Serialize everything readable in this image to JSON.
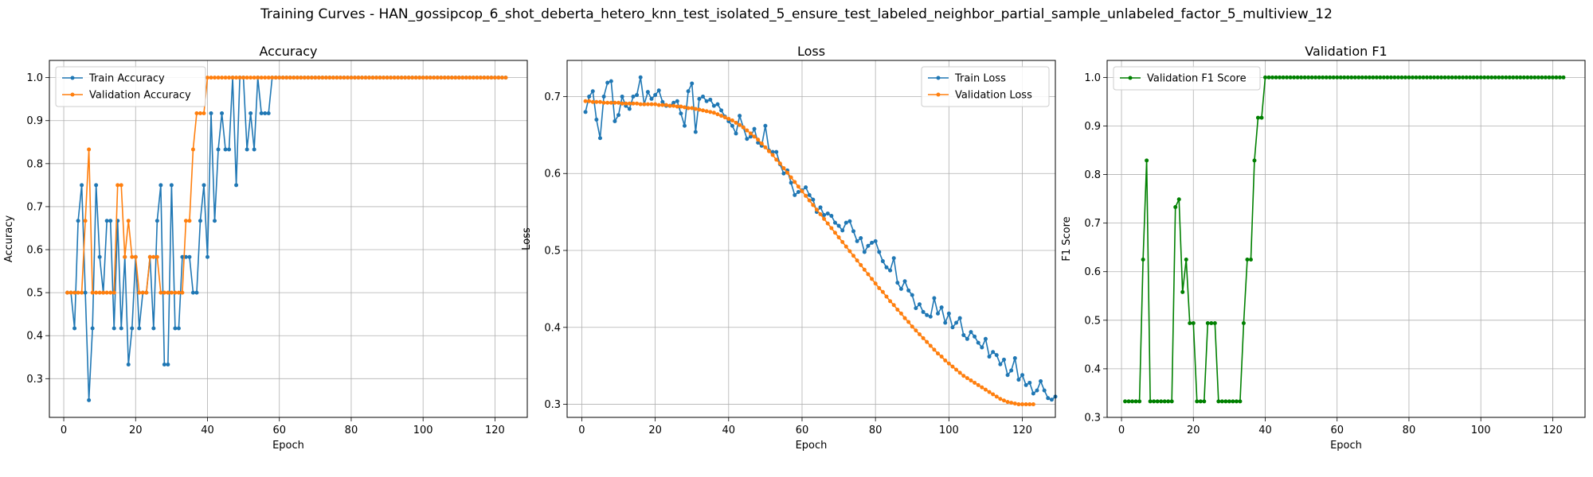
{
  "figure": {
    "title": "Training Curves - HAN_gossipcop_6_shot_deberta_hetero_knn_test_isolated_5_ensure_test_labeled_neighbor_partial_sample_unlabeled_factor_5_multiview_12"
  },
  "colors": {
    "blue": "#1f77b4",
    "orange": "#ff7f0e",
    "green": "#008000",
    "grid": "#b0b0b0"
  },
  "chart_data": [
    {
      "type": "line",
      "title": "Accuracy",
      "xlabel": "Epoch",
      "ylabel": "Accuracy",
      "xlim": [
        -4,
        129
      ],
      "ylim": [
        0.21,
        1.04
      ],
      "xticks": [
        0,
        20,
        40,
        60,
        80,
        100,
        120
      ],
      "yticks": [
        0.3,
        0.4,
        0.5,
        0.6,
        0.7,
        0.8,
        0.9,
        1.0
      ],
      "grid": true,
      "legend_position": "upper-left",
      "series": [
        {
          "name": "Train Accuracy",
          "color": "#1f77b4",
          "x_start": 1,
          "x_step": 1,
          "values": [
            0.5,
            0.5,
            0.417,
            0.667,
            0.75,
            0.5,
            0.25,
            0.417,
            0.75,
            0.583,
            0.5,
            0.667,
            0.667,
            0.417,
            0.667,
            0.417,
            0.583,
            0.333,
            0.417,
            0.583,
            0.417,
            0.5,
            0.5,
            0.583,
            0.417,
            0.667,
            0.75,
            0.333,
            0.333,
            0.75,
            0.417,
            0.417,
            0.583,
            0.583,
            0.583,
            0.5,
            0.5,
            0.667,
            0.75,
            0.583,
            0.917,
            0.667,
            0.833,
            0.917,
            0.833,
            0.833,
            1.0,
            0.75,
            1.0,
            1.0,
            0.833,
            0.917,
            0.833,
            1.0,
            0.917,
            0.917,
            0.917,
            1.0,
            1.0,
            1.0,
            1.0,
            1.0,
            1.0,
            1.0,
            1.0,
            1.0,
            1.0,
            1.0,
            1.0,
            1.0,
            1.0,
            1.0,
            1.0,
            1.0,
            1.0,
            1.0,
            1.0,
            1.0,
            1.0,
            1.0,
            1.0,
            1.0,
            1.0,
            1.0,
            1.0,
            1.0,
            1.0,
            1.0,
            1.0,
            1.0,
            1.0,
            1.0,
            1.0,
            1.0,
            1.0,
            1.0,
            1.0,
            1.0,
            1.0,
            1.0,
            1.0,
            1.0,
            1.0,
            1.0,
            1.0,
            1.0,
            1.0,
            1.0,
            1.0,
            1.0,
            1.0,
            1.0,
            1.0,
            1.0,
            1.0,
            1.0,
            1.0,
            1.0,
            1.0,
            1.0,
            1.0,
            1.0,
            1.0
          ]
        },
        {
          "name": "Validation Accuracy",
          "color": "#ff7f0e",
          "x_start": 1,
          "x_step": 1,
          "values": [
            0.5,
            0.5,
            0.5,
            0.5,
            0.5,
            0.667,
            0.833,
            0.5,
            0.5,
            0.5,
            0.5,
            0.5,
            0.5,
            0.5,
            0.75,
            0.75,
            0.583,
            0.667,
            0.583,
            0.583,
            0.5,
            0.5,
            0.5,
            0.583,
            0.583,
            0.583,
            0.5,
            0.5,
            0.5,
            0.5,
            0.5,
            0.5,
            0.5,
            0.667,
            0.667,
            0.833,
            0.917,
            0.917,
            0.917,
            1.0,
            1.0,
            1.0,
            1.0,
            1.0,
            1.0,
            1.0,
            1.0,
            1.0,
            1.0,
            1.0,
            1.0,
            1.0,
            1.0,
            1.0,
            1.0,
            1.0,
            1.0,
            1.0,
            1.0,
            1.0,
            1.0,
            1.0,
            1.0,
            1.0,
            1.0,
            1.0,
            1.0,
            1.0,
            1.0,
            1.0,
            1.0,
            1.0,
            1.0,
            1.0,
            1.0,
            1.0,
            1.0,
            1.0,
            1.0,
            1.0,
            1.0,
            1.0,
            1.0,
            1.0,
            1.0,
            1.0,
            1.0,
            1.0,
            1.0,
            1.0,
            1.0,
            1.0,
            1.0,
            1.0,
            1.0,
            1.0,
            1.0,
            1.0,
            1.0,
            1.0,
            1.0,
            1.0,
            1.0,
            1.0,
            1.0,
            1.0,
            1.0,
            1.0,
            1.0,
            1.0,
            1.0,
            1.0,
            1.0,
            1.0,
            1.0,
            1.0,
            1.0,
            1.0,
            1.0,
            1.0,
            1.0,
            1.0,
            1.0
          ]
        }
      ]
    },
    {
      "type": "line",
      "title": "Loss",
      "xlabel": "Epoch",
      "ylabel": "Loss",
      "xlim": [
        -4,
        129
      ],
      "ylim": [
        0.283,
        0.747
      ],
      "xticks": [
        0,
        20,
        40,
        60,
        80,
        100,
        120
      ],
      "yticks": [
        0.3,
        0.4,
        0.5,
        0.6,
        0.7
      ],
      "grid": true,
      "legend_position": "upper-right",
      "series": [
        {
          "name": "Train Loss",
          "color": "#1f77b4",
          "x_start": 1,
          "x_step": 1,
          "values": [
            0.68,
            0.7,
            0.707,
            0.67,
            0.646,
            0.7,
            0.718,
            0.72,
            0.668,
            0.676,
            0.7,
            0.688,
            0.684,
            0.7,
            0.702,
            0.725,
            0.69,
            0.706,
            0.697,
            0.702,
            0.708,
            0.693,
            0.688,
            0.688,
            0.692,
            0.694,
            0.678,
            0.662,
            0.707,
            0.717,
            0.654,
            0.697,
            0.7,
            0.694,
            0.696,
            0.688,
            0.69,
            0.682,
            0.674,
            0.668,
            0.662,
            0.652,
            0.675,
            0.66,
            0.645,
            0.648,
            0.658,
            0.64,
            0.636,
            0.662,
            0.63,
            0.628,
            0.628,
            0.612,
            0.6,
            0.604,
            0.588,
            0.572,
            0.576,
            0.578,
            0.582,
            0.572,
            0.566,
            0.55,
            0.556,
            0.546,
            0.548,
            0.545,
            0.536,
            0.532,
            0.526,
            0.536,
            0.538,
            0.525,
            0.512,
            0.516,
            0.498,
            0.506,
            0.51,
            0.512,
            0.498,
            0.486,
            0.478,
            0.474,
            0.49,
            0.458,
            0.45,
            0.46,
            0.448,
            0.442,
            0.425,
            0.43,
            0.42,
            0.416,
            0.414,
            0.438,
            0.418,
            0.426,
            0.406,
            0.418,
            0.4,
            0.406,
            0.412,
            0.39,
            0.385,
            0.394,
            0.388,
            0.38,
            0.374,
            0.385,
            0.362,
            0.368,
            0.364,
            0.352,
            0.358,
            0.338,
            0.344,
            0.36,
            0.332,
            0.338,
            0.325,
            0.328,
            0.314,
            0.318,
            0.33,
            0.318,
            0.308,
            0.306,
            0.31
          ]
        },
        {
          "name": "Validation Loss",
          "color": "#ff7f0e",
          "x_start": 1,
          "x_step": 1,
          "values": [
            0.694,
            0.694,
            0.693,
            0.693,
            0.693,
            0.692,
            0.692,
            0.692,
            0.692,
            0.692,
            0.691,
            0.691,
            0.691,
            0.691,
            0.691,
            0.69,
            0.69,
            0.69,
            0.69,
            0.69,
            0.689,
            0.689,
            0.689,
            0.688,
            0.688,
            0.687,
            0.687,
            0.686,
            0.685,
            0.685,
            0.684,
            0.683,
            0.682,
            0.681,
            0.68,
            0.679,
            0.677,
            0.675,
            0.673,
            0.671,
            0.669,
            0.666,
            0.663,
            0.66,
            0.656,
            0.652,
            0.648,
            0.644,
            0.639,
            0.634,
            0.629,
            0.624,
            0.618,
            0.613,
            0.607,
            0.601,
            0.595,
            0.589,
            0.583,
            0.577,
            0.571,
            0.565,
            0.559,
            0.553,
            0.547,
            0.541,
            0.535,
            0.529,
            0.523,
            0.517,
            0.511,
            0.505,
            0.499,
            0.493,
            0.487,
            0.481,
            0.475,
            0.469,
            0.463,
            0.457,
            0.451,
            0.446,
            0.44,
            0.434,
            0.429,
            0.423,
            0.418,
            0.412,
            0.407,
            0.401,
            0.396,
            0.391,
            0.386,
            0.381,
            0.376,
            0.371,
            0.366,
            0.362,
            0.357,
            0.353,
            0.349,
            0.345,
            0.341,
            0.337,
            0.334,
            0.331,
            0.328,
            0.325,
            0.322,
            0.319,
            0.316,
            0.313,
            0.31,
            0.307,
            0.305,
            0.303,
            0.302,
            0.301,
            0.3,
            0.3,
            0.3,
            0.3,
            0.3
          ]
        }
      ]
    },
    {
      "type": "line",
      "title": "Validation F1",
      "xlabel": "Epoch",
      "ylabel": "F1 Score",
      "xlim": [
        -4,
        129
      ],
      "ylim": [
        0.3,
        1.035
      ],
      "xticks": [
        0,
        20,
        40,
        60,
        80,
        100,
        120
      ],
      "yticks": [
        0.3,
        0.4,
        0.5,
        0.6,
        0.7,
        0.8,
        0.9,
        1.0
      ],
      "grid": true,
      "legend_position": "upper-left",
      "series": [
        {
          "name": "Validation F1 Score",
          "color": "#008000",
          "x_start": 1,
          "x_step": 1,
          "values": [
            0.333,
            0.333,
            0.333,
            0.333,
            0.333,
            0.625,
            0.829,
            0.333,
            0.333,
            0.333,
            0.333,
            0.333,
            0.333,
            0.333,
            0.733,
            0.749,
            0.558,
            0.625,
            0.494,
            0.494,
            0.333,
            0.333,
            0.333,
            0.494,
            0.494,
            0.494,
            0.333,
            0.333,
            0.333,
            0.333,
            0.333,
            0.333,
            0.333,
            0.494,
            0.625,
            0.625,
            0.829,
            0.917,
            0.917,
            1.0,
            1.0,
            1.0,
            1.0,
            1.0,
            1.0,
            1.0,
            1.0,
            1.0,
            1.0,
            1.0,
            1.0,
            1.0,
            1.0,
            1.0,
            1.0,
            1.0,
            1.0,
            1.0,
            1.0,
            1.0,
            1.0,
            1.0,
            1.0,
            1.0,
            1.0,
            1.0,
            1.0,
            1.0,
            1.0,
            1.0,
            1.0,
            1.0,
            1.0,
            1.0,
            1.0,
            1.0,
            1.0,
            1.0,
            1.0,
            1.0,
            1.0,
            1.0,
            1.0,
            1.0,
            1.0,
            1.0,
            1.0,
            1.0,
            1.0,
            1.0,
            1.0,
            1.0,
            1.0,
            1.0,
            1.0,
            1.0,
            1.0,
            1.0,
            1.0,
            1.0,
            1.0,
            1.0,
            1.0,
            1.0,
            1.0,
            1.0,
            1.0,
            1.0,
            1.0,
            1.0,
            1.0,
            1.0,
            1.0,
            1.0,
            1.0,
            1.0,
            1.0,
            1.0,
            1.0,
            1.0,
            1.0,
            1.0,
            1.0
          ]
        }
      ]
    }
  ]
}
